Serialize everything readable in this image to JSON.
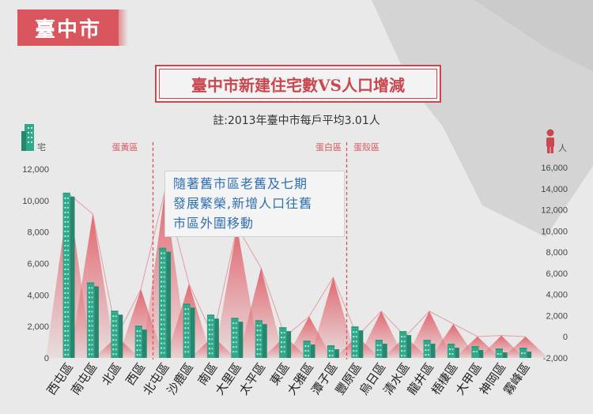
{
  "header": {
    "city": "臺中市",
    "title": "臺中市新建住宅數VS人口增減",
    "note": "註:2013年臺中市每戶平均3.01人"
  },
  "annotation": {
    "line1": "隨著舊市區老舊及七期",
    "line2": "發展繁榮,新增人口往舊",
    "line3": "市區外圍移動"
  },
  "zones": [
    {
      "name": "蛋黃區"
    },
    {
      "name": "蛋白區"
    },
    {
      "name": "蛋殼區"
    }
  ],
  "colors": {
    "building": "#2fa98a",
    "population": "#e0525c",
    "zone_line": "#d9565f",
    "accent": "#c9474f"
  },
  "icons": {
    "left_axis": "building-icon",
    "right_axis": "person-icon"
  },
  "chart_data": {
    "type": "bar",
    "categories": [
      "西屯區",
      "南屯區",
      "北區",
      "西區",
      "北屯區",
      "沙鹿區",
      "南區",
      "大里區",
      "太平區",
      "東區",
      "大雅區",
      "潭子區",
      "豐原區",
      "烏日區",
      "清水區",
      "龍井區",
      "梧棲區",
      "大甲區",
      "神岡區",
      "霧峰區"
    ],
    "series": [
      {
        "axis": "left",
        "type": "bar",
        "values": [
          10400,
          4700,
          2900,
          1950,
          6900,
          3350,
          2650,
          2450,
          2300,
          1850,
          1000,
          700,
          1900,
          1050,
          1600,
          1050,
          800,
          650,
          500,
          550
        ]
      },
      {
        "axis": "right",
        "type": "area",
        "values": [
          13500,
          11600,
          -400,
          4500,
          13800,
          5000,
          -300,
          10400,
          6500,
          -200,
          1900,
          5600,
          -500,
          2400,
          -300,
          2400,
          1200,
          -200,
          100,
          -300
        ]
      }
    ],
    "left_axis": {
      "unit": "宅",
      "ylim": [
        0,
        12000
      ],
      "ticks": [
        "0",
        "2,000",
        "4,000",
        "6,000",
        "8,000",
        "10,000",
        "12,000"
      ]
    },
    "right_axis": {
      "unit": "人",
      "ylim": [
        -2000,
        16000
      ],
      "ticks": [
        "-2,000",
        "0",
        "2,000",
        "4,000",
        "6,000",
        "8,000",
        "10,000",
        "12,000",
        "14,000",
        "16,000"
      ]
    }
  }
}
